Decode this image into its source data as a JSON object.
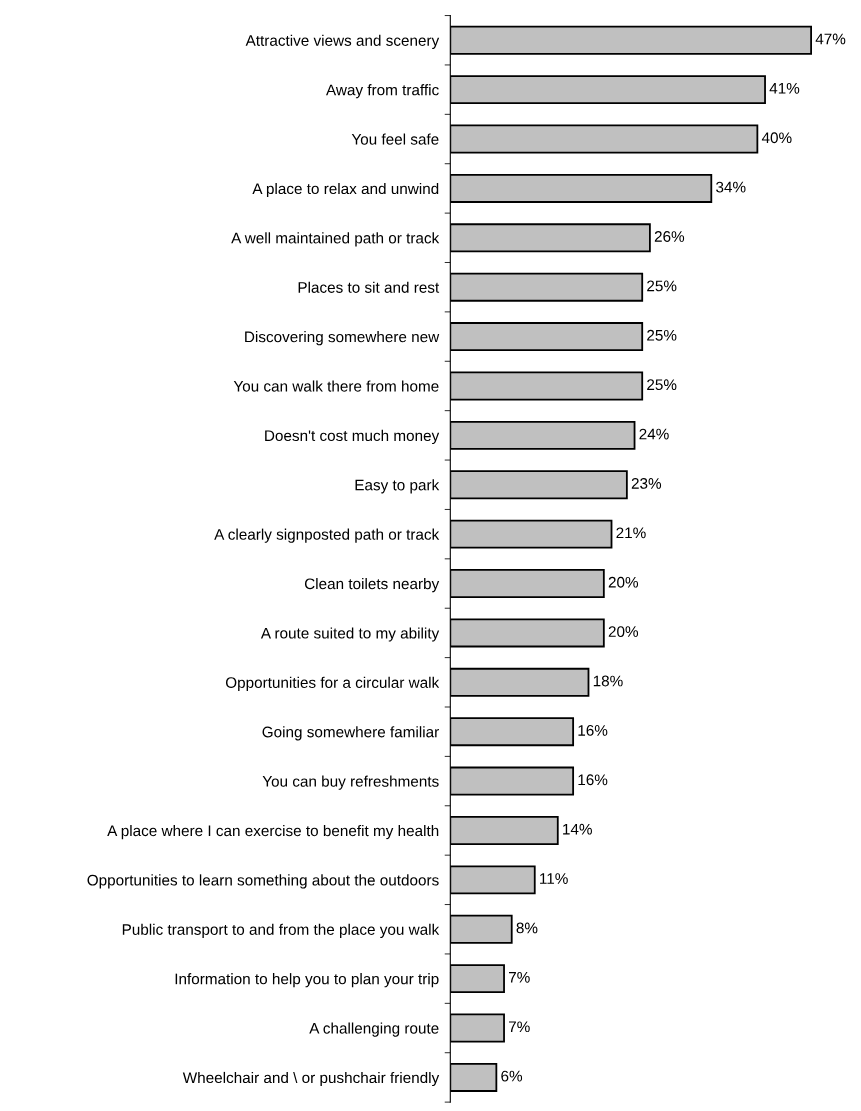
{
  "chart_data": {
    "type": "bar",
    "orientation": "horizontal",
    "categories": [
      "Attractive views and scenery",
      "Away from traffic",
      "You feel safe",
      "A place to relax and unwind",
      "A well maintained path or track",
      "Places to sit and rest",
      "Discovering somewhere new",
      "You can walk there from home",
      "Doesn't cost much money",
      "Easy to park",
      "A clearly signposted path or track",
      "Clean toilets nearby",
      "A route suited to my ability",
      "Opportunities for a circular walk",
      "Going somewhere familiar",
      "You can buy refreshments",
      "A place where I can exercise to benefit my health",
      "Opportunities to learn something about the outdoors",
      "Public transport to and from the place you walk",
      "Information to help you to plan your trip",
      "A challenging route",
      "Wheelchair and \\ or pushchair friendly"
    ],
    "values": [
      47,
      41,
      40,
      34,
      26,
      25,
      25,
      25,
      24,
      23,
      21,
      20,
      20,
      18,
      16,
      16,
      14,
      11,
      8,
      7,
      7,
      6
    ],
    "value_labels": [
      "47%",
      "41%",
      "40%",
      "34%",
      "26%",
      "25%",
      "25%",
      "25%",
      "24%",
      "23%",
      "21%",
      "20%",
      "20%",
      "18%",
      "16%",
      "16%",
      "14%",
      "11%",
      "8%",
      "7%",
      "7%",
      "6%"
    ],
    "color": "#c0c0c0",
    "grid": false,
    "legend": false,
    "tick_labels": "y"
  }
}
